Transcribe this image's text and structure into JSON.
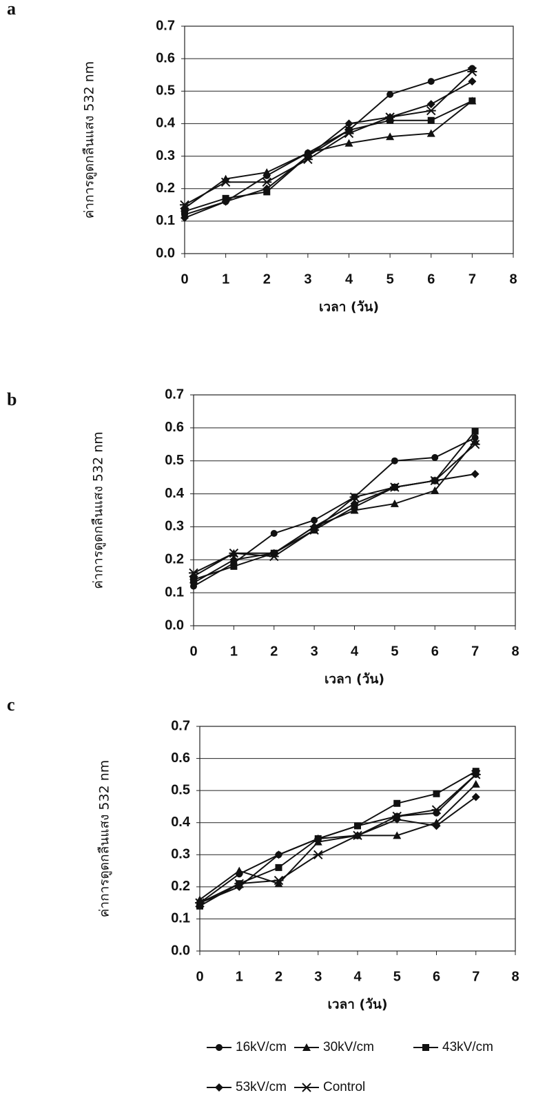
{
  "legend": [
    {
      "name": "16kV/cm",
      "marker": "circle"
    },
    {
      "name": "30kV/cm",
      "marker": "triangle"
    },
    {
      "name": "43kV/cm",
      "marker": "square"
    },
    {
      "name": "53kV/cm",
      "marker": "diamond"
    },
    {
      "name": "Control",
      "marker": "star"
    }
  ],
  "chart_data": [
    {
      "type": "line",
      "label": "a",
      "ylabel": "ค่าการดูดกลืนแสง 532 nm",
      "xlabel": "เวลา (วัน)",
      "x": [
        0,
        1,
        2,
        3,
        4,
        5,
        6,
        7
      ],
      "xlim": [
        0,
        8
      ],
      "xticks": [
        0,
        1,
        2,
        3,
        4,
        5,
        6,
        7,
        8
      ],
      "ylim": [
        0,
        0.7
      ],
      "yticks": [
        {
          "value": 0,
          "label": "0.0"
        },
        0.1,
        0.2,
        0.3,
        0.4,
        0.5,
        0.6,
        0.7
      ],
      "grid": true,
      "color": "#111111",
      "series": [
        {
          "values": [
            0.12,
            0.16,
            0.24,
            0.31,
            0.38,
            0.49,
            0.53,
            0.57
          ]
        },
        {
          "values": [
            0.14,
            0.23,
            0.25,
            0.31,
            0.34,
            0.36,
            0.37,
            0.47
          ]
        },
        {
          "values": [
            0.13,
            0.17,
            0.19,
            0.3,
            0.38,
            0.41,
            0.41,
            0.47
          ]
        },
        {
          "values": [
            0.11,
            0.16,
            0.2,
            0.3,
            0.4,
            0.42,
            0.46,
            0.53
          ]
        },
        {
          "values": [
            0.15,
            0.22,
            0.22,
            0.29,
            0.37,
            0.42,
            0.44,
            0.56
          ]
        }
      ]
    },
    {
      "type": "line",
      "label": "b",
      "ylabel": "ค่าการดูดกลืนแสง 532 nm",
      "xlabel": "เวลา (วัน)",
      "x": [
        0,
        1,
        2,
        3,
        4,
        5,
        6,
        7
      ],
      "xlim": [
        0,
        8
      ],
      "xticks": [
        0,
        1,
        2,
        3,
        4,
        5,
        6,
        7,
        8
      ],
      "ylim": [
        0,
        0.7
      ],
      "yticks": [
        {
          "value": 0,
          "label": "0.0"
        },
        0.1,
        0.2,
        0.3,
        0.4,
        0.5,
        0.6,
        0.7
      ],
      "grid": true,
      "color": "#111111",
      "series": [
        {
          "values": [
            0.12,
            0.19,
            0.28,
            0.32,
            0.39,
            0.5,
            0.51,
            0.57
          ]
        },
        {
          "values": [
            0.15,
            0.22,
            0.22,
            0.3,
            0.35,
            0.37,
            0.41,
            0.56
          ]
        },
        {
          "values": [
            0.14,
            0.18,
            0.22,
            0.29,
            0.36,
            0.42,
            0.44,
            0.59
          ]
        },
        {
          "values": [
            0.13,
            0.2,
            0.22,
            0.3,
            0.37,
            0.42,
            0.44,
            0.46
          ]
        },
        {
          "values": [
            0.16,
            0.22,
            0.21,
            0.29,
            0.39,
            0.42,
            0.44,
            0.55
          ]
        }
      ]
    },
    {
      "type": "line",
      "label": "c",
      "ylabel": "ค่าการดูดกลืนแสง 532 nm",
      "xlabel": "เวลา (วัน)",
      "x": [
        0,
        1,
        2,
        3,
        4,
        5,
        6,
        7
      ],
      "xlim": [
        0,
        8
      ],
      "xticks": [
        0,
        1,
        2,
        3,
        4,
        5,
        6,
        7,
        8
      ],
      "ylim": [
        0,
        0.7
      ],
      "yticks": [
        {
          "value": 0,
          "label": "0.0"
        },
        0.1,
        0.2,
        0.3,
        0.4,
        0.5,
        0.6,
        0.7
      ],
      "grid": true,
      "color": "#111111",
      "series": [
        {
          "values": [
            0.15,
            0.24,
            0.3,
            0.35,
            0.39,
            0.42,
            0.43,
            0.55
          ]
        },
        {
          "values": [
            0.16,
            0.25,
            0.21,
            0.34,
            0.36,
            0.36,
            0.4,
            0.52
          ]
        },
        {
          "values": [
            0.14,
            0.21,
            0.26,
            0.35,
            0.39,
            0.46,
            0.49,
            0.56
          ]
        },
        {
          "values": [
            0.15,
            0.2,
            0.3,
            0.35,
            0.36,
            0.41,
            0.39,
            0.48
          ]
        },
        {
          "values": [
            0.15,
            0.21,
            0.22,
            0.3,
            0.36,
            0.42,
            0.44,
            0.55
          ]
        }
      ]
    }
  ]
}
